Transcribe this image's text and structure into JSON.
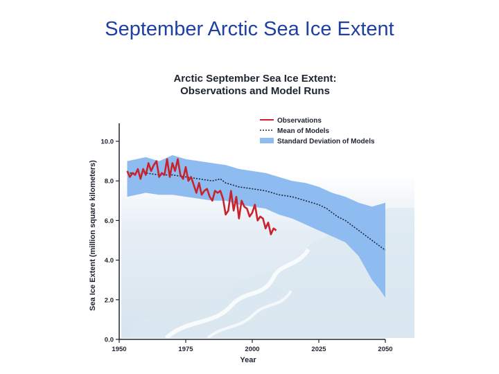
{
  "slide": {
    "title": "September Arctic Sea Ice Extent"
  },
  "colors": {
    "observations": "#c8232c",
    "mean_of_models": "#1a2438",
    "std_band": "#8fbcf0",
    "slide_title": "#1f3fa3"
  },
  "chart_data": {
    "type": "line",
    "title_lines": [
      "Arctic September Sea Ice Extent:",
      "Observations and Model Runs"
    ],
    "xlabel": "Year",
    "ylabel": "Sea Ice Extent (million square kilometers)",
    "xlim": [
      1950,
      2050
    ],
    "ylim": [
      0,
      10
    ],
    "x_ticks": [
      {
        "value": 1950,
        "label": "1950"
      },
      {
        "value": 1975,
        "label": "1975"
      },
      {
        "value": 2000,
        "label": "2000"
      },
      {
        "value": 2025,
        "label": "2025"
      },
      {
        "value": 2050,
        "label": "2050"
      }
    ],
    "y_ticks": [
      {
        "value": 0,
        "label": "0.0"
      },
      {
        "value": 2,
        "label": "2.0"
      },
      {
        "value": 4,
        "label": "4.0"
      },
      {
        "value": 6,
        "label": "6.0"
      },
      {
        "value": 8,
        "label": "8.0"
      },
      {
        "value": 10,
        "label": "10.0"
      }
    ],
    "legend": {
      "position": "top-right",
      "items": [
        {
          "label": "Observations",
          "style": "solid-red"
        },
        {
          "label": "Mean of Models",
          "style": "dotted-dark"
        },
        {
          "label": "Standard Deviation of Models",
          "style": "band-blue"
        }
      ]
    },
    "series": [
      {
        "name": "Observations",
        "points": [
          [
            1953,
            8.5
          ],
          [
            1954,
            8.2
          ],
          [
            1955,
            8.4
          ],
          [
            1956,
            8.3
          ],
          [
            1957,
            8.6
          ],
          [
            1958,
            8.1
          ],
          [
            1959,
            8.6
          ],
          [
            1960,
            8.3
          ],
          [
            1961,
            8.9
          ],
          [
            1962,
            8.5
          ],
          [
            1963,
            8.8
          ],
          [
            1964,
            9.0
          ],
          [
            1965,
            8.2
          ],
          [
            1966,
            8.4
          ],
          [
            1967,
            8.3
          ],
          [
            1968,
            9.1
          ],
          [
            1969,
            8.2
          ],
          [
            1970,
            8.9
          ],
          [
            1971,
            8.5
          ],
          [
            1972,
            9.1
          ],
          [
            1973,
            8.3
          ],
          [
            1974,
            8.1
          ],
          [
            1975,
            8.7
          ],
          [
            1976,
            8.0
          ],
          [
            1977,
            8.2
          ],
          [
            1978,
            7.8
          ],
          [
            1979,
            7.4
          ],
          [
            1980,
            7.9
          ],
          [
            1981,
            7.3
          ],
          [
            1982,
            7.5
          ],
          [
            1983,
            7.6
          ],
          [
            1984,
            7.2
          ],
          [
            1985,
            7.0
          ],
          [
            1986,
            7.5
          ],
          [
            1987,
            7.4
          ],
          [
            1988,
            7.5
          ],
          [
            1989,
            7.1
          ],
          [
            1990,
            6.3
          ],
          [
            1991,
            6.5
          ],
          [
            1992,
            7.5
          ],
          [
            1993,
            6.5
          ],
          [
            1994,
            7.2
          ],
          [
            1995,
            6.1
          ],
          [
            1996,
            7.0
          ],
          [
            1997,
            6.7
          ],
          [
            1998,
            6.6
          ],
          [
            1999,
            6.2
          ],
          [
            2000,
            6.4
          ],
          [
            2001,
            6.8
          ],
          [
            2002,
            6.0
          ],
          [
            2003,
            6.2
          ],
          [
            2004,
            6.1
          ],
          [
            2005,
            5.6
          ],
          [
            2006,
            5.9
          ],
          [
            2007,
            5.3
          ],
          [
            2008,
            5.6
          ],
          [
            2009,
            5.5
          ]
        ]
      },
      {
        "name": "Mean of Models",
        "points": [
          [
            1953,
            8.4
          ],
          [
            1960,
            8.4
          ],
          [
            1965,
            8.3
          ],
          [
            1970,
            8.3
          ],
          [
            1975,
            8.2
          ],
          [
            1980,
            8.1
          ],
          [
            1985,
            8.0
          ],
          [
            1988,
            8.1
          ],
          [
            1990,
            7.9
          ],
          [
            1995,
            7.7
          ],
          [
            2000,
            7.6
          ],
          [
            2005,
            7.5
          ],
          [
            2010,
            7.3
          ],
          [
            2015,
            7.2
          ],
          [
            2020,
            7.0
          ],
          [
            2025,
            6.8
          ],
          [
            2028,
            6.6
          ],
          [
            2030,
            6.4
          ],
          [
            2032,
            6.2
          ],
          [
            2035,
            6.0
          ],
          [
            2038,
            5.7
          ],
          [
            2040,
            5.5
          ],
          [
            2043,
            5.2
          ],
          [
            2046,
            4.9
          ],
          [
            2048,
            4.7
          ],
          [
            2050,
            4.5
          ]
        ]
      }
    ],
    "std_band": {
      "upper": [
        [
          1953,
          9.0
        ],
        [
          1960,
          9.2
        ],
        [
          1965,
          9.0
        ],
        [
          1970,
          9.3
        ],
        [
          1975,
          9.1
        ],
        [
          1980,
          9.0
        ],
        [
          1985,
          8.9
        ],
        [
          1990,
          8.8
        ],
        [
          1995,
          8.6
        ],
        [
          2000,
          8.5
        ],
        [
          2005,
          8.4
        ],
        [
          2010,
          8.2
        ],
        [
          2015,
          8.0
        ],
        [
          2020,
          7.9
        ],
        [
          2025,
          7.7
        ],
        [
          2030,
          7.4
        ],
        [
          2035,
          7.2
        ],
        [
          2040,
          6.9
        ],
        [
          2045,
          6.7
        ],
        [
          2050,
          6.9
        ]
      ],
      "lower": [
        [
          1953,
          7.2
        ],
        [
          1960,
          7.4
        ],
        [
          1965,
          7.3
        ],
        [
          1970,
          7.3
        ],
        [
          1975,
          7.2
        ],
        [
          1980,
          7.1
        ],
        [
          1985,
          7.0
        ],
        [
          1990,
          7.0
        ],
        [
          1995,
          6.8
        ],
        [
          2000,
          6.7
        ],
        [
          2005,
          6.6
        ],
        [
          2010,
          6.3
        ],
        [
          2015,
          6.1
        ],
        [
          2020,
          5.8
        ],
        [
          2025,
          5.5
        ],
        [
          2030,
          5.2
        ],
        [
          2035,
          4.9
        ],
        [
          2040,
          4.2
        ],
        [
          2045,
          3.0
        ],
        [
          2048,
          2.5
        ],
        [
          2050,
          2.1
        ]
      ]
    }
  }
}
